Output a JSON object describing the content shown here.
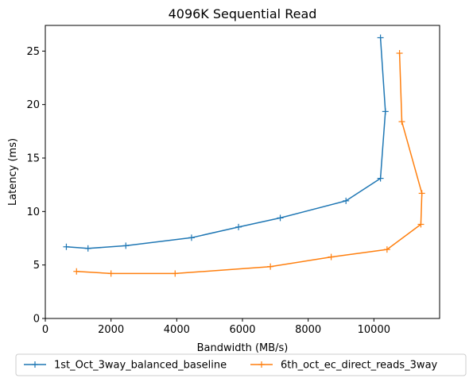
{
  "chart_data": {
    "type": "line",
    "title": "4096K  Sequential Read",
    "xlabel": "Bandwidth (MB/s)",
    "ylabel": "Latency (ms)",
    "xlim": [
      0,
      12000
    ],
    "ylim": [
      0,
      27.4
    ],
    "xticks": [
      0,
      2000,
      4000,
      6000,
      8000,
      10000
    ],
    "yticks": [
      0,
      5,
      10,
      15,
      20,
      25
    ],
    "grid": false,
    "legend_position": "below",
    "series": [
      {
        "name": "1st_Oct_3way_balanced_baseline",
        "color": "#1f77b4",
        "marker": "+",
        "x": [
          640,
          1300,
          2450,
          4450,
          5880,
          7150,
          9150,
          10200,
          10350,
          10200
        ],
        "y": [
          6.7,
          6.55,
          6.8,
          7.55,
          8.55,
          9.4,
          11.0,
          13.1,
          19.35,
          26.25
        ]
      },
      {
        "name": "6th_oct_ec_direct_reads_3way",
        "color": "#ff7f0e",
        "marker": "+",
        "x": [
          950,
          2000,
          3950,
          6850,
          8700,
          10400,
          11430,
          11460,
          10850,
          10780
        ],
        "y": [
          4.4,
          4.2,
          4.2,
          4.85,
          5.75,
          6.45,
          8.8,
          11.7,
          18.4,
          24.8
        ]
      }
    ]
  }
}
